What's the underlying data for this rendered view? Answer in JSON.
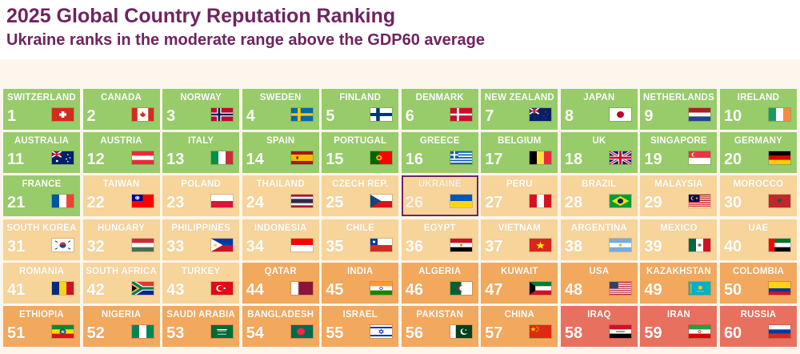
{
  "header": {
    "title": "2025 Global Country Reputation Ranking",
    "subtitle": "Ukraine ranks in the moderate range above the GDP60 average"
  },
  "colors": {
    "title": "#6e2460",
    "green": "#98cc6a",
    "light_orange": "#f7d49a",
    "orange": "#f2a85d",
    "red": "#e8705f",
    "highlight_border": "#6e2460"
  },
  "chart_data": {
    "type": "table",
    "title": "2025 Global Country Reputation Ranking",
    "subtitle": "Ukraine ranks in the moderate range above the GDP60 average",
    "columns": 10,
    "highlighted_country": "UKRAINE",
    "rows": [
      {
        "rank": 1,
        "country": "SWITZERLAND",
        "tier": "green"
      },
      {
        "rank": 2,
        "country": "CANADA",
        "tier": "green"
      },
      {
        "rank": 3,
        "country": "NORWAY",
        "tier": "green"
      },
      {
        "rank": 4,
        "country": "SWEDEN",
        "tier": "green"
      },
      {
        "rank": 5,
        "country": "FINLAND",
        "tier": "green"
      },
      {
        "rank": 6,
        "country": "DENMARK",
        "tier": "green"
      },
      {
        "rank": 7,
        "country": "NEW ZEALAND",
        "tier": "green"
      },
      {
        "rank": 8,
        "country": "JAPAN",
        "tier": "green"
      },
      {
        "rank": 9,
        "country": "NETHERLANDS",
        "tier": "green"
      },
      {
        "rank": 10,
        "country": "IRELAND",
        "tier": "green"
      },
      {
        "rank": 11,
        "country": "AUSTRALIA",
        "tier": "green"
      },
      {
        "rank": 12,
        "country": "AUSTRIA",
        "tier": "green"
      },
      {
        "rank": 13,
        "country": "ITALY",
        "tier": "green"
      },
      {
        "rank": 14,
        "country": "SPAIN",
        "tier": "green"
      },
      {
        "rank": 15,
        "country": "PORTUGAL",
        "tier": "green"
      },
      {
        "rank": 16,
        "country": "GREECE",
        "tier": "green"
      },
      {
        "rank": 17,
        "country": "BELGIUM",
        "tier": "green"
      },
      {
        "rank": 18,
        "country": "UK",
        "tier": "green"
      },
      {
        "rank": 19,
        "country": "SINGAPORE",
        "tier": "green"
      },
      {
        "rank": 20,
        "country": "GERMANY",
        "tier": "green"
      },
      {
        "rank": 21,
        "country": "FRANCE",
        "tier": "green"
      },
      {
        "rank": 22,
        "country": "TAIWAN",
        "tier": "light_orange"
      },
      {
        "rank": 23,
        "country": "POLAND",
        "tier": "light_orange"
      },
      {
        "rank": 24,
        "country": "THAILAND",
        "tier": "light_orange"
      },
      {
        "rank": 25,
        "country": "CZECH REP.",
        "tier": "light_orange"
      },
      {
        "rank": 26,
        "country": "UKRAINE",
        "tier": "light_orange"
      },
      {
        "rank": 27,
        "country": "PERU",
        "tier": "light_orange"
      },
      {
        "rank": 28,
        "country": "BRAZIL",
        "tier": "light_orange"
      },
      {
        "rank": 29,
        "country": "MALAYSIA",
        "tier": "light_orange"
      },
      {
        "rank": 30,
        "country": "MOROCCO",
        "tier": "light_orange"
      },
      {
        "rank": 31,
        "country": "SOUTH KOREA",
        "tier": "light_orange"
      },
      {
        "rank": 32,
        "country": "HUNGARY",
        "tier": "light_orange"
      },
      {
        "rank": 33,
        "country": "PHILIPPINES",
        "tier": "light_orange"
      },
      {
        "rank": 34,
        "country": "INDONESIA",
        "tier": "light_orange"
      },
      {
        "rank": 35,
        "country": "CHILE",
        "tier": "light_orange"
      },
      {
        "rank": 36,
        "country": "EGYPT",
        "tier": "light_orange"
      },
      {
        "rank": 37,
        "country": "VIETNAM",
        "tier": "light_orange"
      },
      {
        "rank": 38,
        "country": "ARGENTINA",
        "tier": "light_orange"
      },
      {
        "rank": 39,
        "country": "MEXICO",
        "tier": "light_orange"
      },
      {
        "rank": 40,
        "country": "UAE",
        "tier": "light_orange"
      },
      {
        "rank": 41,
        "country": "ROMANIA",
        "tier": "light_orange"
      },
      {
        "rank": 42,
        "country": "SOUTH AFRICA",
        "tier": "light_orange"
      },
      {
        "rank": 43,
        "country": "TURKEY",
        "tier": "light_orange"
      },
      {
        "rank": 44,
        "country": "QATAR",
        "tier": "orange"
      },
      {
        "rank": 45,
        "country": "INDIA",
        "tier": "orange"
      },
      {
        "rank": 46,
        "country": "ALGERIA",
        "tier": "orange"
      },
      {
        "rank": 47,
        "country": "KUWAIT",
        "tier": "orange"
      },
      {
        "rank": 48,
        "country": "USA",
        "tier": "orange"
      },
      {
        "rank": 49,
        "country": "KAZAKHSTAN",
        "tier": "orange"
      },
      {
        "rank": 50,
        "country": "COLOMBIA",
        "tier": "orange"
      },
      {
        "rank": 51,
        "country": "ETHIOPIA",
        "tier": "orange"
      },
      {
        "rank": 52,
        "country": "NIGERIA",
        "tier": "orange"
      },
      {
        "rank": 53,
        "country": "SAUDI ARABIA",
        "tier": "orange"
      },
      {
        "rank": 54,
        "country": "BANGLADESH",
        "tier": "orange"
      },
      {
        "rank": 55,
        "country": "ISRAEL",
        "tier": "orange"
      },
      {
        "rank": 56,
        "country": "PAKISTAN",
        "tier": "orange"
      },
      {
        "rank": 57,
        "country": "CHINA",
        "tier": "orange"
      },
      {
        "rank": 58,
        "country": "IRAQ",
        "tier": "red"
      },
      {
        "rank": 59,
        "country": "IRAN",
        "tier": "red"
      },
      {
        "rank": 60,
        "country": "RUSSIA",
        "tier": "red"
      }
    ]
  }
}
